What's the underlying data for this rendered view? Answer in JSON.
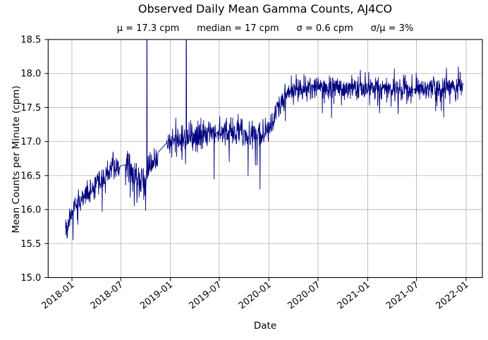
{
  "chart_data": {
    "type": "line",
    "title": "Observed Daily Mean Gamma Counts, AJ4CO",
    "subtitle": "μ = 17.3 cpm      median = 17 cpm      σ = 0.6 cpm      σ/μ = 3%",
    "stats": {
      "mu_cpm": 17.3,
      "median_cpm": 17,
      "sigma_cpm": 0.6,
      "sigma_over_mu_percent": 3
    },
    "xlabel": "Date",
    "ylabel": "Mean Counts per Minute (cpm)",
    "series_name": "daily-mean-gamma-counts",
    "ylim": [
      15.0,
      18.5
    ],
    "yticks": [
      "15.0",
      "15.5",
      "16.0",
      "16.5",
      "17.0",
      "17.5",
      "18.0",
      "18.5"
    ],
    "xticks": [
      {
        "label": "2018-01",
        "date": "2018-01-01"
      },
      {
        "label": "2018-07",
        "date": "2018-07-01"
      },
      {
        "label": "2019-01",
        "date": "2019-01-01"
      },
      {
        "label": "2019-07",
        "date": "2019-07-01"
      },
      {
        "label": "2020-01",
        "date": "2020-01-01"
      },
      {
        "label": "2020-07",
        "date": "2020-07-01"
      },
      {
        "label": "2021-01",
        "date": "2021-01-01"
      },
      {
        "label": "2021-07",
        "date": "2021-07-01"
      },
      {
        "label": "2022-01",
        "date": "2022-01-01"
      }
    ],
    "xlim_dates": [
      "2017-10-05",
      "2022-03-01"
    ],
    "grid": true,
    "legend": false,
    "line_color": "#000080",
    "grid_color": "#b0b0b0",
    "spine_color": "#000000",
    "date_start": "2017-12-08",
    "date_end": "2021-12-21",
    "seed": 11,
    "trend": [
      [
        "2017-12-08",
        15.82
      ],
      [
        "2017-12-16",
        15.7
      ],
      [
        "2018-01-01",
        16.0
      ],
      [
        "2018-01-20",
        16.1
      ],
      [
        "2018-02-10",
        16.12
      ],
      [
        "2018-03-01",
        16.25
      ],
      [
        "2018-04-01",
        16.35
      ],
      [
        "2018-05-01",
        16.47
      ],
      [
        "2018-06-01",
        16.6
      ],
      [
        "2018-06-28",
        16.64
      ],
      [
        "2018-07-18",
        16.66
      ],
      [
        "2018-07-28",
        16.7
      ],
      [
        "2018-08-12",
        16.48
      ],
      [
        "2018-09-05",
        16.42
      ],
      [
        "2018-09-28",
        16.4
      ],
      [
        "2018-10-06",
        16.52
      ],
      [
        "2018-10-22",
        16.65
      ],
      [
        "2018-11-16",
        16.84
      ],
      [
        "2018-12-18",
        16.98
      ],
      [
        "2019-01-15",
        17.0
      ],
      [
        "2019-02-15",
        17.0
      ],
      [
        "2019-03-15",
        17.05
      ],
      [
        "2019-04-15",
        17.08
      ],
      [
        "2019-05-15",
        17.12
      ],
      [
        "2019-06-15",
        17.14
      ],
      [
        "2019-07-15",
        17.1
      ],
      [
        "2019-08-15",
        17.16
      ],
      [
        "2019-09-10",
        17.18
      ],
      [
        "2019-10-05",
        17.08
      ],
      [
        "2019-11-01",
        17.12
      ],
      [
        "2019-12-10",
        17.1
      ],
      [
        "2020-01-01",
        17.18
      ],
      [
        "2020-02-01",
        17.45
      ],
      [
        "2020-03-01",
        17.68
      ],
      [
        "2020-04-01",
        17.75
      ],
      [
        "2020-06-01",
        17.78
      ],
      [
        "2021-01-01",
        17.78
      ],
      [
        "2021-07-01",
        17.77
      ],
      [
        "2021-12-21",
        17.8
      ]
    ],
    "noise_sigma_windows": [
      [
        "2017-12-08",
        0.075
      ],
      [
        "2018-01-01",
        0.085
      ],
      [
        "2018-07-20",
        0.115
      ],
      [
        "2018-10-08",
        0.09
      ],
      [
        "2019-01-04",
        0.1
      ],
      [
        "2020-03-01",
        0.09
      ],
      [
        "2020-06-01",
        0.085
      ]
    ],
    "gaps": [
      [
        "2018-06-28",
        "2018-07-18"
      ],
      [
        "2018-11-16",
        "2018-12-18"
      ],
      [
        "2021-06-17",
        "2021-06-24"
      ]
    ],
    "events": [
      [
        "2017-12-14",
        15.58
      ],
      [
        "2018-08-05",
        16.18
      ],
      [
        "2018-08-30",
        16.1
      ],
      [
        "2018-09-24",
        16.15
      ],
      [
        "2018-10-06",
        19.6
      ],
      [
        "2019-03-01",
        19.6
      ],
      [
        "2019-06-12",
        16.45
      ],
      [
        "2019-10-16",
        16.5
      ],
      [
        "2019-11-29",
        16.3
      ],
      [
        "2020-08-20",
        17.35
      ],
      [
        "2020-12-05",
        18.05
      ],
      [
        "2021-02-14",
        17.42
      ],
      [
        "2021-04-10",
        18.07
      ],
      [
        "2021-09-10",
        17.45
      ],
      [
        "2021-10-20",
        18.08
      ],
      [
        "2021-12-03",
        18.1
      ]
    ]
  }
}
